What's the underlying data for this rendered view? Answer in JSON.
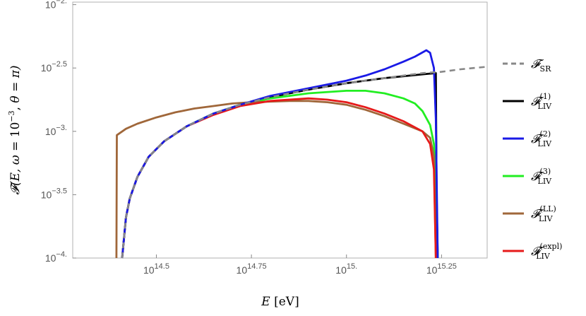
{
  "chart_data": {
    "type": "line",
    "xlabel": "E [eV]",
    "ylabel": "F(E, ω = 10^−3, θ = π)",
    "x_scale": "log10",
    "y_scale": "log10",
    "x_range_log10": [
      14.28,
      15.37
    ],
    "y_range_log10": [
      -4.0,
      -1.98
    ],
    "x_ticks": [
      {
        "value": 14.5,
        "label_base": "10",
        "label_exp": "14.5"
      },
      {
        "value": 14.75,
        "label_base": "10",
        "label_exp": "14.75"
      },
      {
        "value": 15.0,
        "label_base": "10",
        "label_exp": "15."
      },
      {
        "value": 15.25,
        "label_base": "10",
        "label_exp": "15.25"
      }
    ],
    "y_ticks": [
      {
        "value": -4.0,
        "label_base": "10",
        "label_exp": "−4."
      },
      {
        "value": -3.5,
        "label_base": "10",
        "label_exp": "−3.5"
      },
      {
        "value": -3.0,
        "label_base": "10",
        "label_exp": "−3."
      },
      {
        "value": -2.5,
        "label_base": "10",
        "label_exp": "−2.5"
      },
      {
        "value": -2.0,
        "label_base": "10",
        "label_exp": "−2."
      }
    ],
    "grid": false,
    "legend_position": "right",
    "series": [
      {
        "name": "F_SR",
        "label_main": "𝓕",
        "label_sub": "SR",
        "label_sup": "",
        "color": "#888888",
        "dashed": true,
        "x": [
          14.41,
          14.42,
          14.43,
          14.45,
          14.48,
          14.52,
          14.58,
          14.65,
          14.72,
          14.8,
          14.9,
          15.0,
          15.1,
          15.2,
          15.25,
          15.3,
          15.37
        ],
        "y": [
          -4.0,
          -3.68,
          -3.53,
          -3.36,
          -3.2,
          -3.08,
          -2.96,
          -2.86,
          -2.79,
          -2.73,
          -2.67,
          -2.62,
          -2.58,
          -2.54,
          -2.53,
          -2.51,
          -2.49
        ]
      },
      {
        "name": "F_LIV^(1)",
        "label_main": "𝓕",
        "label_sub": "LIV",
        "label_sup": "(1)",
        "color": "#000000",
        "dashed": false,
        "x": [
          14.41,
          14.42,
          14.43,
          14.45,
          14.48,
          14.52,
          14.58,
          14.65,
          14.72,
          14.8,
          14.9,
          15.0,
          15.1,
          15.2,
          15.235,
          15.237,
          15.24
        ],
        "y": [
          -4.0,
          -3.68,
          -3.53,
          -3.36,
          -3.2,
          -3.08,
          -2.96,
          -2.86,
          -2.79,
          -2.73,
          -2.67,
          -2.62,
          -2.58,
          -2.55,
          -2.54,
          -3.5,
          -4.0
        ]
      },
      {
        "name": "F_LIV^(2)",
        "label_main": "𝓕",
        "label_sub": "LIV",
        "label_sup": "(2)",
        "color": "#1a1ae6",
        "dashed": false,
        "x": [
          14.41,
          14.42,
          14.43,
          14.45,
          14.48,
          14.52,
          14.58,
          14.65,
          14.72,
          14.8,
          14.9,
          15.0,
          15.05,
          15.1,
          15.15,
          15.18,
          15.21,
          15.22,
          15.23,
          15.235,
          15.24
        ],
        "y": [
          -4.0,
          -3.68,
          -3.53,
          -3.36,
          -3.2,
          -3.08,
          -2.96,
          -2.86,
          -2.79,
          -2.72,
          -2.66,
          -2.6,
          -2.56,
          -2.51,
          -2.45,
          -2.41,
          -2.36,
          -2.38,
          -2.5,
          -2.9,
          -4.0
        ]
      },
      {
        "name": "F_LIV^(3)",
        "label_main": "𝓕",
        "label_sub": "LIV",
        "label_sup": "(3)",
        "color": "#22ee22",
        "dashed": false,
        "x": [
          14.41,
          14.42,
          14.43,
          14.45,
          14.48,
          14.52,
          14.58,
          14.65,
          14.72,
          14.8,
          14.9,
          15.0,
          15.05,
          15.1,
          15.15,
          15.18,
          15.2,
          15.22,
          15.23,
          15.237,
          15.24
        ],
        "y": [
          -4.0,
          -3.68,
          -3.53,
          -3.36,
          -3.2,
          -3.08,
          -2.96,
          -2.86,
          -2.79,
          -2.74,
          -2.7,
          -2.68,
          -2.68,
          -2.7,
          -2.74,
          -2.78,
          -2.84,
          -2.95,
          -3.1,
          -3.6,
          -4.0
        ]
      },
      {
        "name": "F_LIV^(LL)",
        "label_main": "𝓕",
        "label_sub": "LIV",
        "label_sup": "(LL)",
        "color": "#a0673a",
        "dashed": false,
        "x": [
          14.395,
          14.396,
          14.42,
          14.45,
          14.5,
          14.55,
          14.6,
          14.65,
          14.7,
          14.75,
          14.8,
          14.85,
          14.9,
          14.95,
          15.0,
          15.05,
          15.1,
          15.15,
          15.2,
          15.22,
          15.23,
          15.235
        ],
        "y": [
          -4.0,
          -3.03,
          -2.98,
          -2.94,
          -2.89,
          -2.85,
          -2.82,
          -2.8,
          -2.78,
          -2.77,
          -2.765,
          -2.76,
          -2.76,
          -2.77,
          -2.79,
          -2.83,
          -2.88,
          -2.94,
          -3.0,
          -3.05,
          -3.2,
          -4.0
        ]
      },
      {
        "name": "F_LIV^(expl)",
        "label_main": "𝓕",
        "label_sub": "LIV",
        "label_sup": "(expl)",
        "color": "#e61a1a",
        "dashed": false,
        "x": [
          14.41,
          14.42,
          14.43,
          14.45,
          14.48,
          14.52,
          14.58,
          14.65,
          14.72,
          14.8,
          14.9,
          14.95,
          15.0,
          15.05,
          15.1,
          15.15,
          15.2,
          15.22,
          15.23,
          15.235
        ],
        "y": [
          -4.0,
          -3.68,
          -3.53,
          -3.36,
          -3.2,
          -3.08,
          -2.96,
          -2.87,
          -2.8,
          -2.76,
          -2.74,
          -2.75,
          -2.77,
          -2.81,
          -2.86,
          -2.92,
          -3.0,
          -3.1,
          -3.3,
          -4.0
        ]
      }
    ]
  }
}
